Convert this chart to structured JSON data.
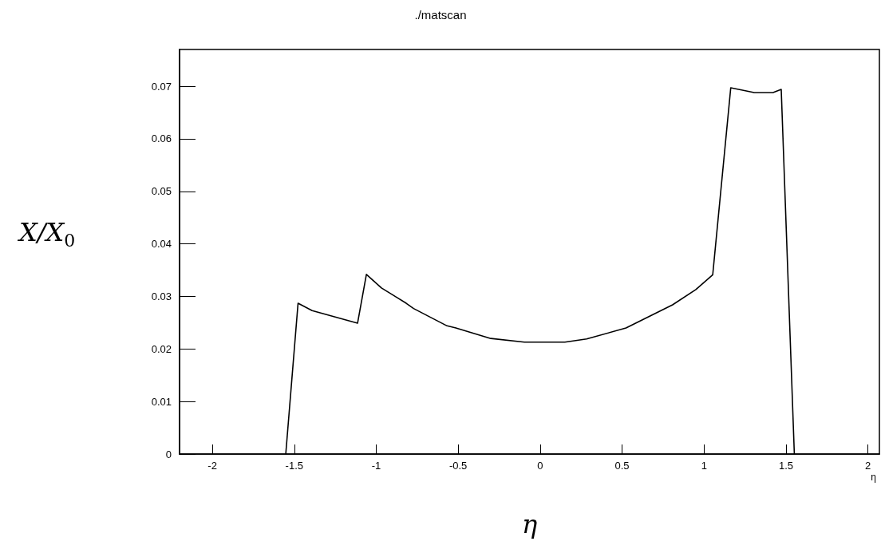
{
  "chart_data": {
    "type": "line",
    "title": "./matscan",
    "xlabel": "η",
    "ylabel": "X/X$_{0}$",
    "annotations": [
      "η"
    ],
    "x": [
      -1.552,
      -1.477,
      -1.391,
      -1.114,
      -1.06,
      -0.968,
      -0.879,
      -0.817,
      -0.772,
      -0.568,
      -0.514,
      -0.301,
      -0.096,
      0.151,
      0.284,
      0.524,
      0.808,
      0.95,
      1.053,
      1.163,
      1.306,
      1.421,
      1.471,
      1.551
    ],
    "series": [
      {
        "color": "#000000",
        "values": [
          0,
          0.0287,
          0.0273,
          0.0249,
          0.0342,
          0.0316,
          0.0299,
          0.0287,
          0.0277,
          0.0244,
          0.024,
          0.022,
          0.0213,
          0.0213,
          0.0219,
          0.024,
          0.0284,
          0.0313,
          0.0341,
          0.0697,
          0.0688,
          0.0688,
          0.0694,
          0
        ]
      }
    ],
    "xlim": [
      -2.2,
      2.07
    ],
    "xticks": [
      -2,
      -1.5,
      -1,
      -0.5,
      0,
      0.5,
      1,
      1.5,
      2
    ],
    "ylim": [
      0,
      0.077
    ],
    "yticks": [
      0,
      0.01,
      0.02,
      0.03,
      0.04,
      0.05,
      0.06,
      0.07
    ],
    "grid": false,
    "marker": "none",
    "line_style": "solid"
  }
}
